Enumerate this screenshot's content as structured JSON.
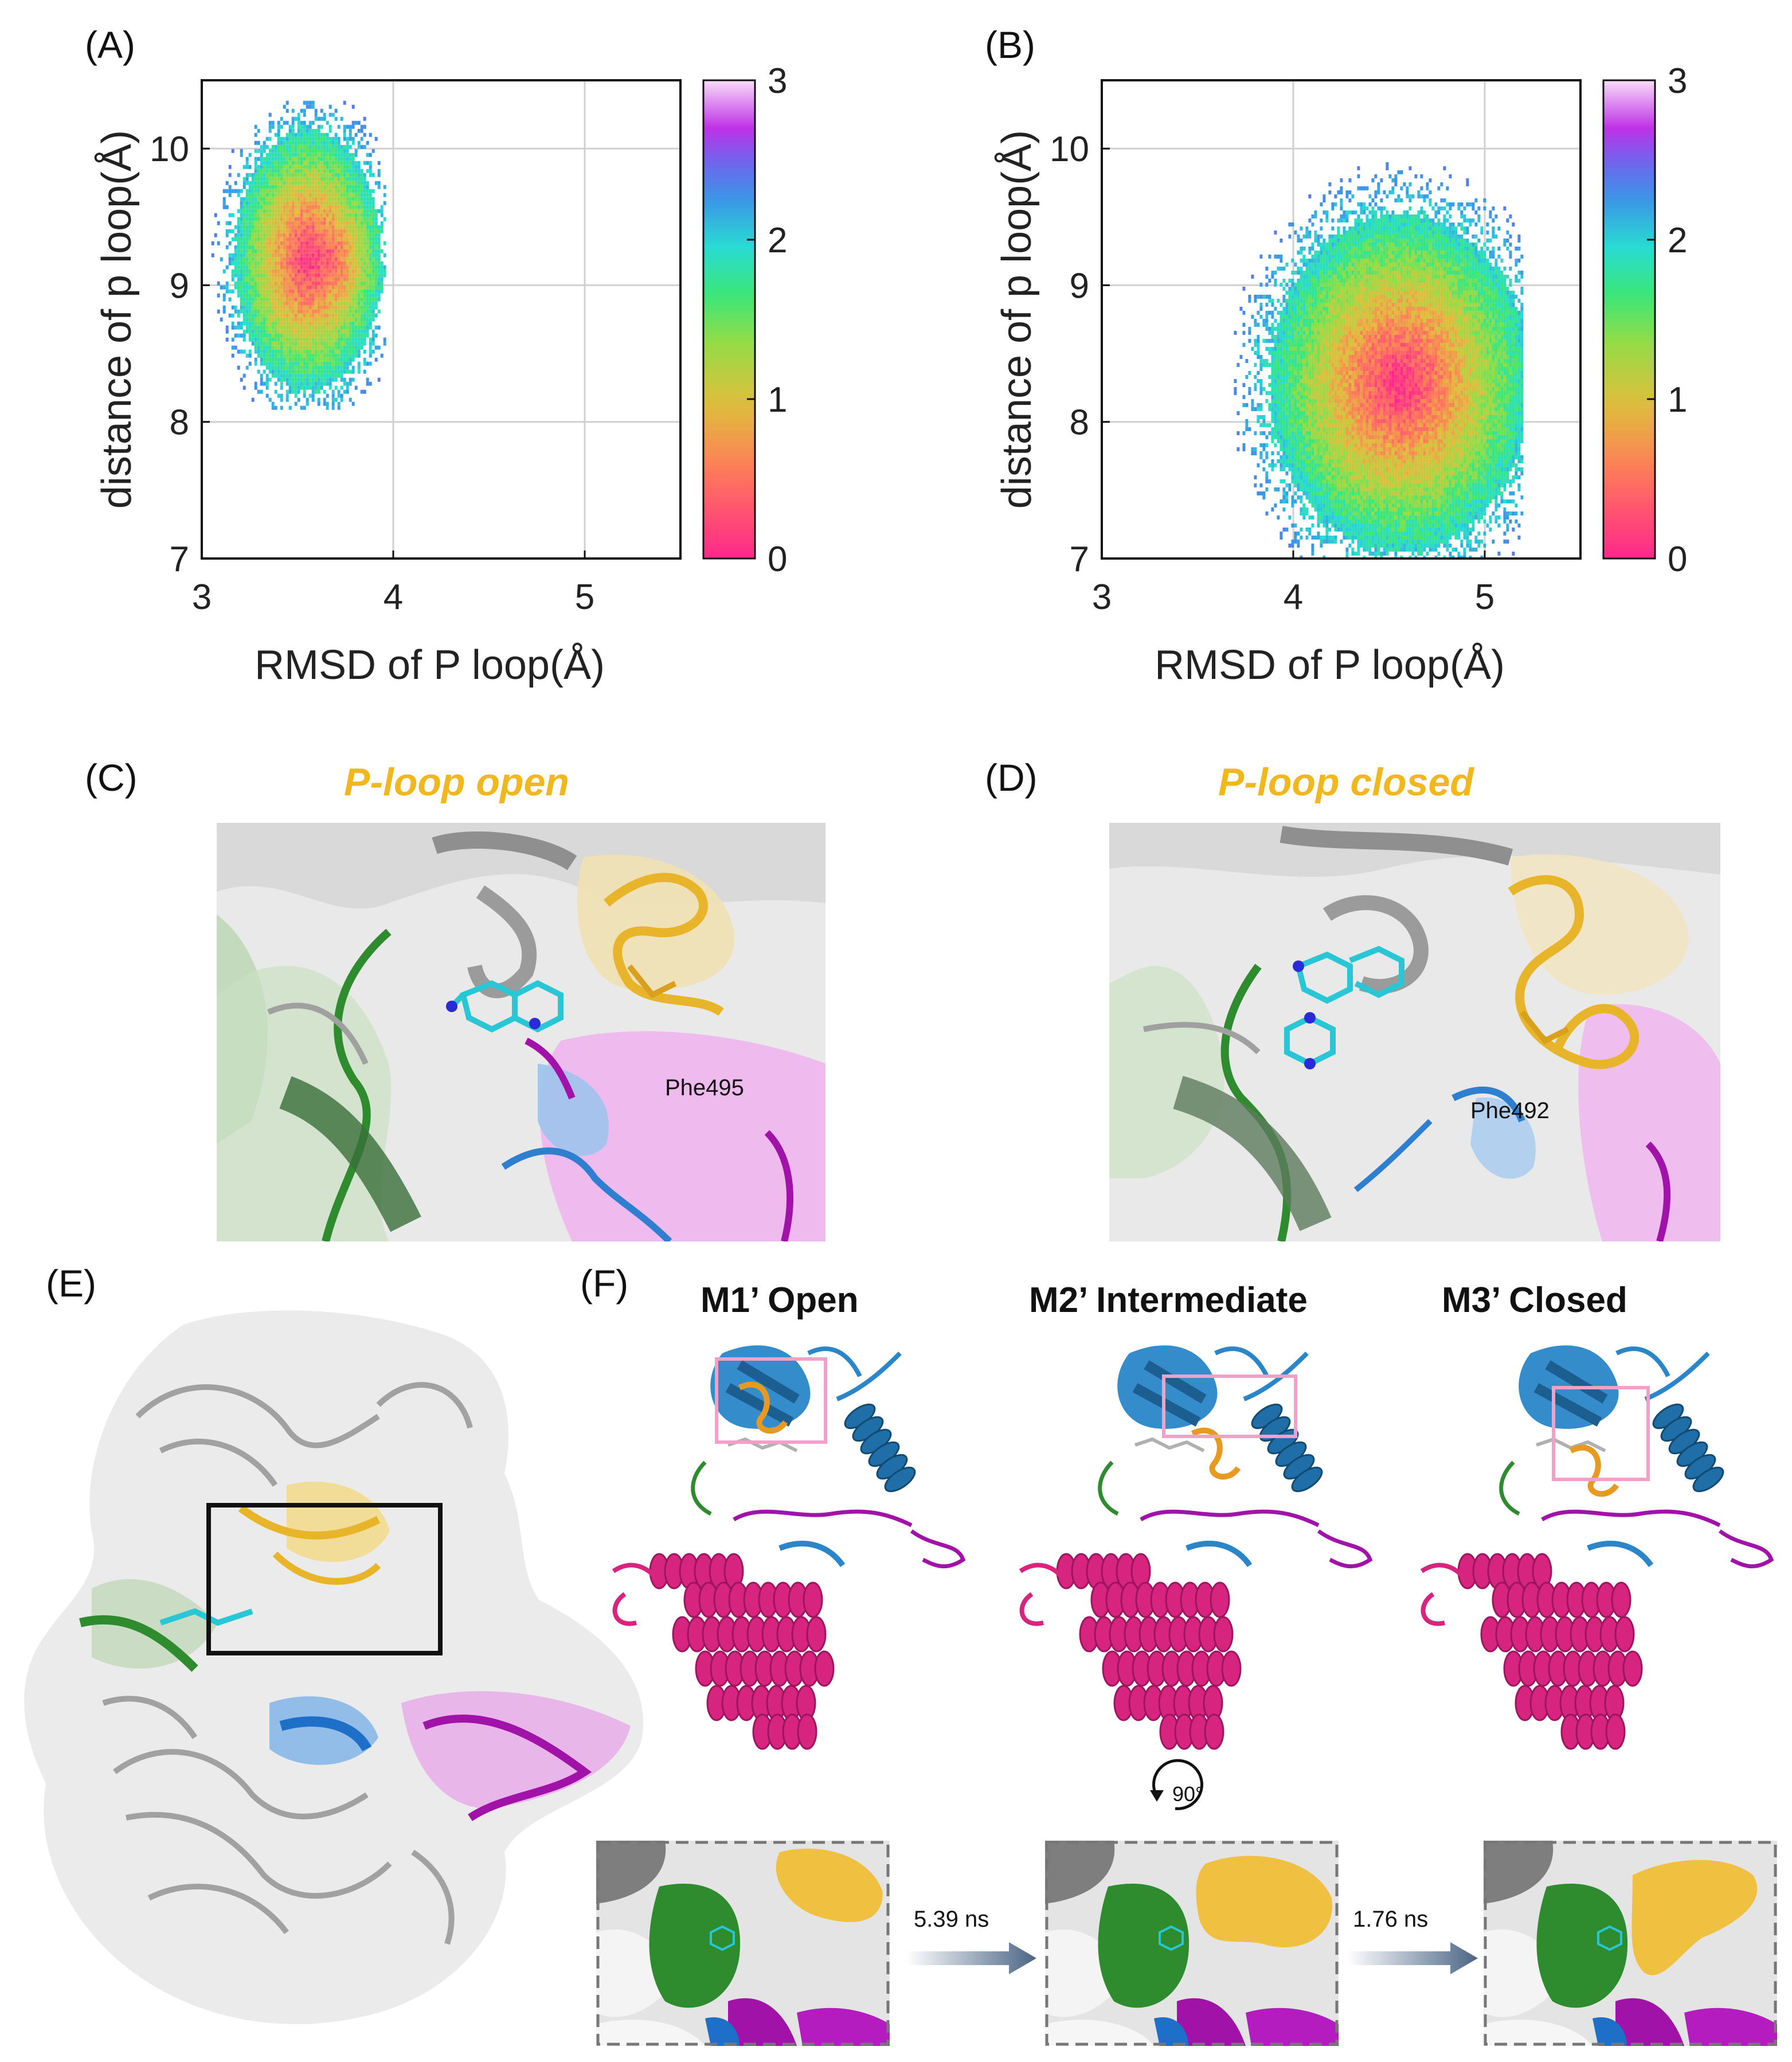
{
  "panels": {
    "a": {
      "label": "(A)"
    },
    "b": {
      "label": "(B)"
    },
    "c": {
      "label": "(C)",
      "title": "P-loop open",
      "residue": "Phe495"
    },
    "d": {
      "label": "(D)",
      "title": "P-loop closed",
      "residue": "Phe492"
    },
    "e": {
      "label": "(E)"
    },
    "f": {
      "label": "(F)",
      "states": [
        "M1’ Open",
        "M2’ Intermediate",
        "M3’ Closed"
      ],
      "rotation": "90°",
      "transitions": [
        "5.39 ns",
        "1.76 ns"
      ]
    }
  },
  "colors": {
    "p_loop": "#f0b81e",
    "hinge": "#2e8b2e",
    "c_lobe": "#d6247f",
    "activation_loop": "#a012a8",
    "blue_region": "#2f7fd0",
    "ligand": "#29c6d6"
  },
  "chart_data": [
    {
      "type": "heatmap",
      "panel": "A",
      "xlabel": "RMSD of P loop(Å)",
      "ylabel": "distance of p loop(Å)",
      "xlim": [
        3,
        5.5
      ],
      "ylim": [
        7,
        10.5
      ],
      "xticks": [
        3,
        4,
        5
      ],
      "yticks": [
        7,
        8,
        9,
        10
      ],
      "grid": true,
      "colorbar": {
        "range": [
          0,
          3
        ],
        "ticks": [
          0,
          1,
          2,
          3
        ]
      },
      "distribution": {
        "x_center": 3.55,
        "y_center": 9.2,
        "x_range": [
          3.05,
          3.95
        ],
        "y_range": [
          8.1,
          10.35
        ],
        "min_center": [
          3.65,
          9.2
        ]
      }
    },
    {
      "type": "heatmap",
      "panel": "B",
      "xlabel": "RMSD of P loop(Å)",
      "ylabel": "distance of p loop(Å)",
      "xlim": [
        3,
        5.5
      ],
      "ylim": [
        7,
        10.5
      ],
      "xticks": [
        3,
        4,
        5
      ],
      "yticks": [
        7,
        8,
        9,
        10
      ],
      "grid": true,
      "colorbar": {
        "range": [
          0,
          3
        ],
        "ticks": [
          0,
          1,
          2,
          3
        ]
      },
      "distribution": {
        "x_center": 4.55,
        "y_center": 8.3,
        "x_range": [
          3.6,
          5.2
        ],
        "y_range": [
          7.0,
          9.9
        ],
        "min_center": [
          4.58,
          8.3
        ]
      }
    }
  ]
}
